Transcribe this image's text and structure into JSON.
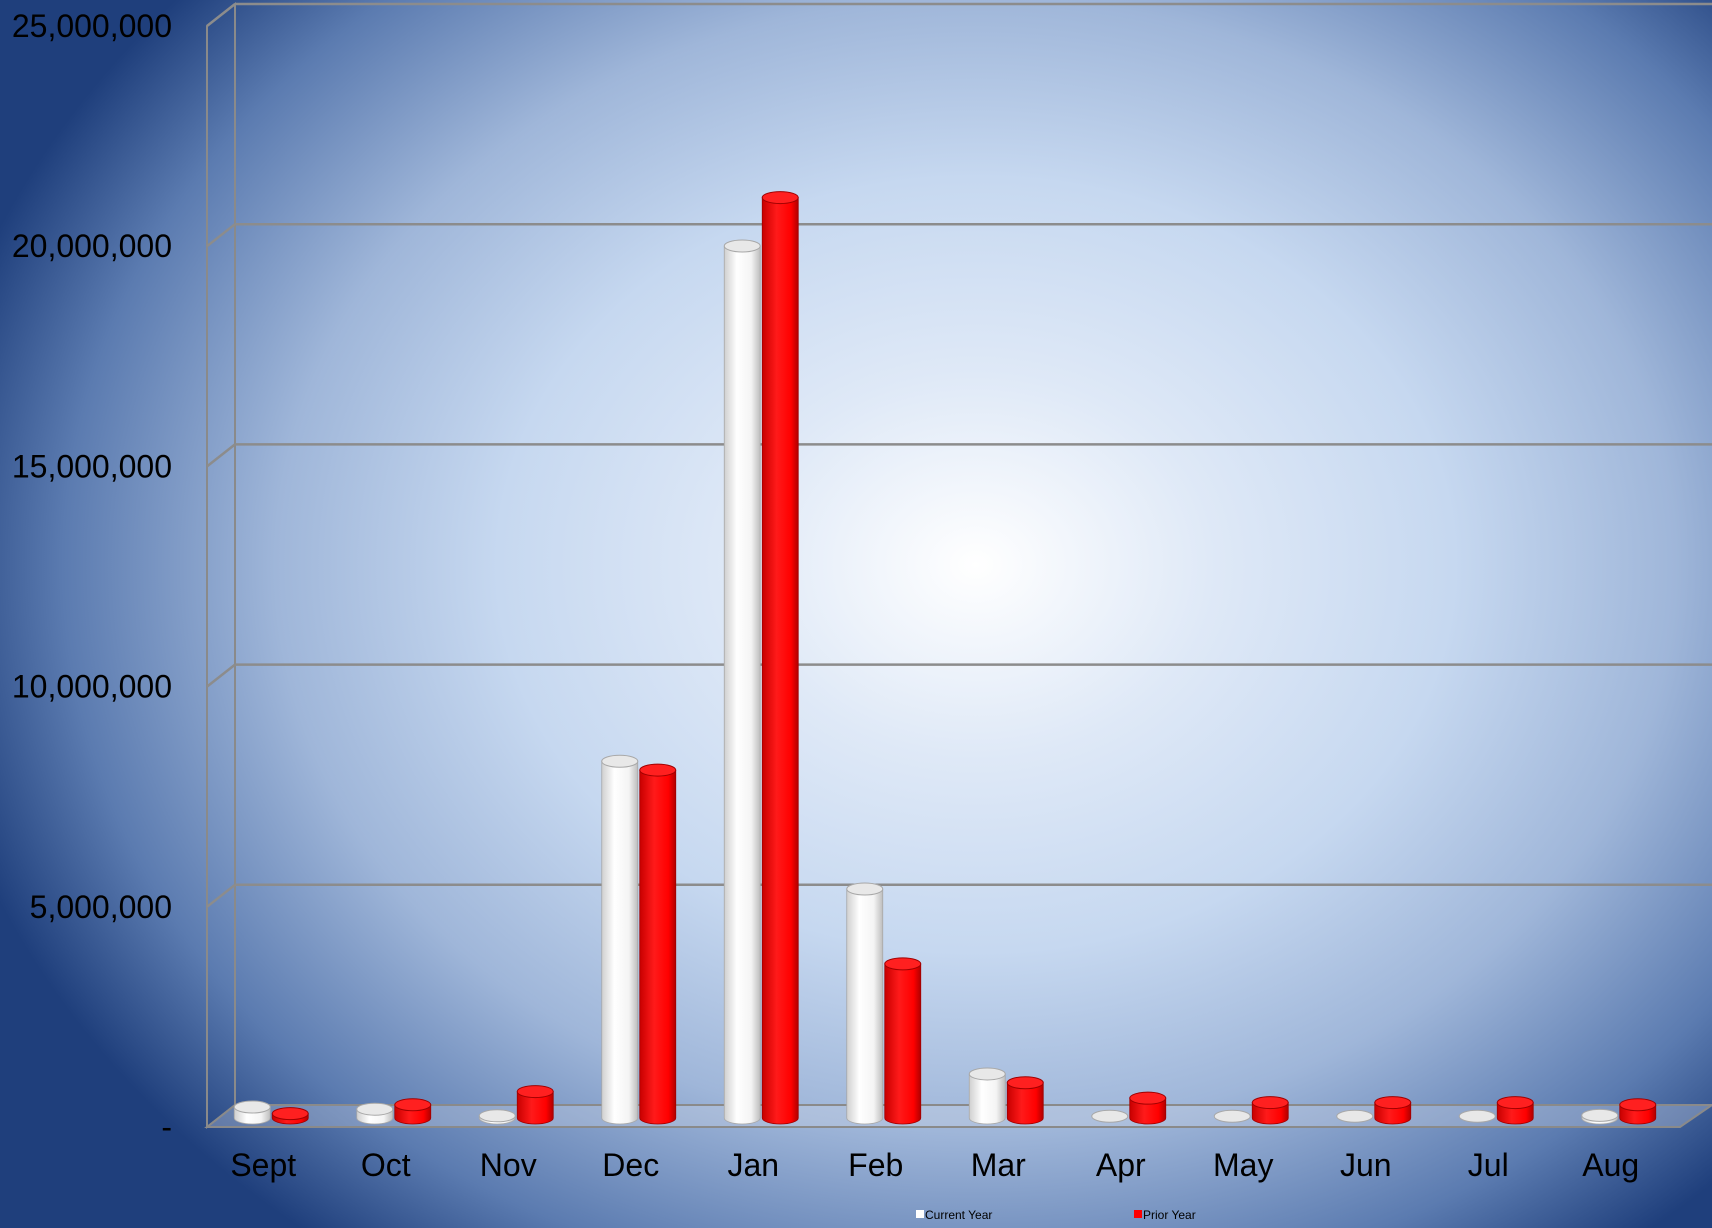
{
  "chart_data": {
    "type": "bar",
    "categories": [
      "Sept",
      "Oct",
      "Nov",
      "Dec",
      "Jan",
      "Feb",
      "Mar",
      "Apr",
      "May",
      "Jun",
      "Jul",
      "Aug"
    ],
    "series": [
      {
        "name": "Current Year",
        "color": "#ffffff",
        "values": [
          250000,
          200000,
          50000,
          8100000,
          19800000,
          5200000,
          1000000,
          40000,
          40000,
          40000,
          40000,
          60000
        ]
      },
      {
        "name": "Prior Year",
        "color": "#ff0000",
        "values": [
          100000,
          300000,
          600000,
          7900000,
          20900000,
          3500000,
          800000,
          450000,
          350000,
          350000,
          350000,
          300000
        ]
      }
    ],
    "yticks": [
      "-",
      "5,000,000",
      "10,000,000",
      "15,000,000",
      "20,000,000",
      "25,000,000"
    ],
    "ylim": [
      0,
      25000000
    ],
    "grid": true,
    "legend_position": "bottom",
    "title": "",
    "xlabel": "",
    "ylabel": ""
  }
}
